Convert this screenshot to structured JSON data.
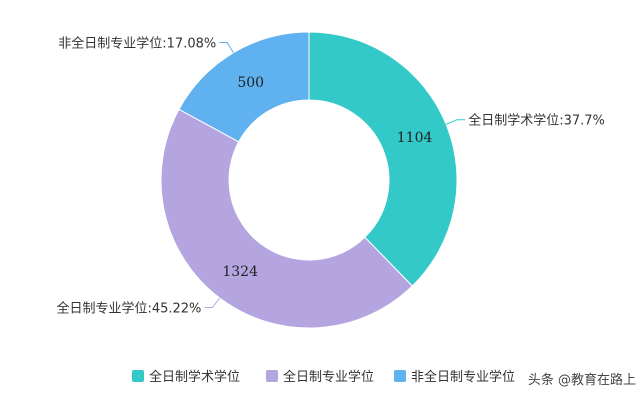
{
  "chart_data": {
    "type": "pie",
    "donut": true,
    "title": "",
    "categories": [
      "全日制学术学位",
      "全日制专业学位",
      "非全日制专业学位"
    ],
    "values": [
      1104,
      1324,
      500
    ],
    "percent_labels": [
      "全日制学术学位:37.7%",
      "全日制专业学位:45.22%",
      "非全日制专业学位:17.08%"
    ],
    "colors": [
      "#33c9c9",
      "#b4a4e0",
      "#5fb1ef"
    ],
    "legend_position": "bottom"
  },
  "watermark": {
    "text": "头条 @教育在路上"
  }
}
